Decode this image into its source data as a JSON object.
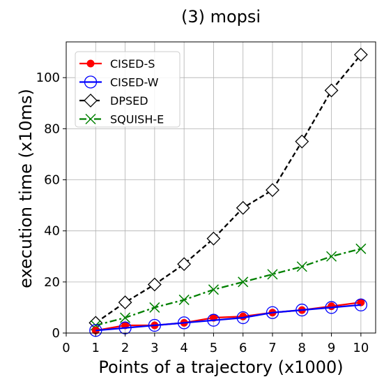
{
  "chart_data": {
    "type": "line",
    "title": "(3) mopsi",
    "xlabel": "Points of a trajectory (x1000)",
    "ylabel": "execution time (x10ms)",
    "xlim": [
      0,
      10.5
    ],
    "ylim": [
      0,
      114
    ],
    "xticks": [
      0,
      1,
      2,
      3,
      4,
      5,
      6,
      7,
      8,
      9,
      10
    ],
    "yticks": [
      0,
      20,
      40,
      60,
      80,
      100
    ],
    "grid": true,
    "legend_position": "top-left",
    "x": [
      1,
      2,
      3,
      4,
      5,
      6,
      7,
      8,
      9,
      10
    ],
    "series": [
      {
        "name": "CISED-S",
        "values": [
          1,
          3,
          3,
          4,
          6,
          6.5,
          8,
          9,
          10.5,
          12
        ],
        "color": "#ff0000",
        "marker": "filled-circle",
        "dash": "solid"
      },
      {
        "name": "CISED-W",
        "values": [
          1,
          2,
          3,
          4,
          5,
          6,
          8,
          9,
          10,
          11
        ],
        "color": "#0000ff",
        "marker": "open-circle",
        "dash": "solid"
      },
      {
        "name": "DPSED",
        "values": [
          4,
          12,
          19,
          27,
          37,
          49,
          56,
          75,
          95,
          109
        ],
        "color": "#000000",
        "marker": "open-diamond",
        "dash": "dashed"
      },
      {
        "name": "SQUISH-E",
        "values": [
          3,
          6,
          10,
          13,
          17,
          20,
          23,
          26,
          30,
          33
        ],
        "color": "#008000",
        "marker": "x",
        "dash": "dashdot"
      }
    ]
  }
}
